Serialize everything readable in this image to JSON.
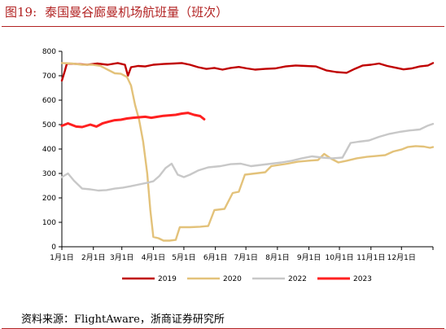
{
  "title": {
    "figure_no": "图19:",
    "text": "泰国曼谷廊曼机场航班量（班次）"
  },
  "source": "资料来源：FlightAware，浙商证券研究所",
  "chart_data": {
    "type": "line",
    "title": "泰国曼谷廊曼机场航班量（班次）",
    "xlabel": "",
    "ylabel": "",
    "ylim": [
      0,
      800
    ],
    "yticks": [
      0,
      100,
      200,
      300,
      400,
      500,
      600,
      700,
      800
    ],
    "xlim": [
      0,
      365
    ],
    "xticks": [
      {
        "label": "1月1日",
        "day": 0
      },
      {
        "label": "2月1日",
        "day": 31
      },
      {
        "label": "3月1日",
        "day": 59
      },
      {
        "label": "4月1日",
        "day": 90
      },
      {
        "label": "5月1日",
        "day": 120
      },
      {
        "label": "6月1日",
        "day": 151
      },
      {
        "label": "7月1日",
        "day": 181
      },
      {
        "label": "8月1日",
        "day": 212
      },
      {
        "label": "9月1日",
        "day": 243
      },
      {
        "label": "10月1日",
        "day": 273
      },
      {
        "label": "11月1日",
        "day": 304
      },
      {
        "label": "12月1日",
        "day": 334
      }
    ],
    "grid": false,
    "legend_position": "bottom",
    "series": [
      {
        "name": "2019",
        "color": "#c00000",
        "width": 2.4,
        "points": [
          [
            0,
            680
          ],
          [
            3,
            720
          ],
          [
            5,
            750
          ],
          [
            15,
            748
          ],
          [
            25,
            745
          ],
          [
            35,
            750
          ],
          [
            45,
            745
          ],
          [
            55,
            752
          ],
          [
            62,
            745
          ],
          [
            65,
            700
          ],
          [
            68,
            735
          ],
          [
            75,
            740
          ],
          [
            82,
            738
          ],
          [
            90,
            745
          ],
          [
            100,
            748
          ],
          [
            110,
            750
          ],
          [
            118,
            752
          ],
          [
            126,
            745
          ],
          [
            134,
            735
          ],
          [
            142,
            728
          ],
          [
            150,
            732
          ],
          [
            158,
            725
          ],
          [
            166,
            732
          ],
          [
            174,
            736
          ],
          [
            182,
            730
          ],
          [
            190,
            725
          ],
          [
            200,
            728
          ],
          [
            210,
            730
          ],
          [
            220,
            738
          ],
          [
            230,
            742
          ],
          [
            240,
            740
          ],
          [
            250,
            738
          ],
          [
            260,
            722
          ],
          [
            270,
            715
          ],
          [
            280,
            712
          ],
          [
            288,
            728
          ],
          [
            296,
            742
          ],
          [
            304,
            745
          ],
          [
            312,
            750
          ],
          [
            320,
            740
          ],
          [
            328,
            733
          ],
          [
            336,
            726
          ],
          [
            344,
            730
          ],
          [
            352,
            738
          ],
          [
            360,
            742
          ],
          [
            365,
            752
          ]
        ]
      },
      {
        "name": "2020",
        "color": "#e3c27a",
        "width": 2.4,
        "points": [
          [
            0,
            752
          ],
          [
            10,
            750
          ],
          [
            20,
            745
          ],
          [
            30,
            745
          ],
          [
            38,
            740
          ],
          [
            45,
            725
          ],
          [
            52,
            710
          ],
          [
            58,
            708
          ],
          [
            64,
            695
          ],
          [
            68,
            660
          ],
          [
            72,
            580
          ],
          [
            76,
            520
          ],
          [
            80,
            430
          ],
          [
            84,
            300
          ],
          [
            87,
            150
          ],
          [
            90,
            40
          ],
          [
            95,
            35
          ],
          [
            100,
            25
          ],
          [
            106,
            25
          ],
          [
            112,
            28
          ],
          [
            116,
            80
          ],
          [
            126,
            80
          ],
          [
            136,
            82
          ],
          [
            144,
            85
          ],
          [
            150,
            150
          ],
          [
            160,
            155
          ],
          [
            168,
            220
          ],
          [
            174,
            225
          ],
          [
            180,
            295
          ],
          [
            190,
            300
          ],
          [
            200,
            305
          ],
          [
            206,
            330
          ],
          [
            214,
            335
          ],
          [
            222,
            340
          ],
          [
            232,
            348
          ],
          [
            242,
            352
          ],
          [
            252,
            355
          ],
          [
            258,
            380
          ],
          [
            265,
            360
          ],
          [
            272,
            345
          ],
          [
            280,
            352
          ],
          [
            290,
            362
          ],
          [
            300,
            368
          ],
          [
            310,
            372
          ],
          [
            318,
            375
          ],
          [
            326,
            390
          ],
          [
            334,
            398
          ],
          [
            340,
            408
          ],
          [
            348,
            412
          ],
          [
            356,
            410
          ],
          [
            362,
            405
          ],
          [
            365,
            408
          ]
        ]
      },
      {
        "name": "2022",
        "color": "#c8c8c8",
        "width": 2.4,
        "points": [
          [
            0,
            285
          ],
          [
            6,
            300
          ],
          [
            12,
            270
          ],
          [
            20,
            238
          ],
          [
            28,
            235
          ],
          [
            36,
            230
          ],
          [
            44,
            232
          ],
          [
            52,
            238
          ],
          [
            60,
            242
          ],
          [
            68,
            248
          ],
          [
            76,
            255
          ],
          [
            84,
            262
          ],
          [
            90,
            268
          ],
          [
            96,
            290
          ],
          [
            102,
            322
          ],
          [
            108,
            340
          ],
          [
            114,
            295
          ],
          [
            120,
            285
          ],
          [
            126,
            295
          ],
          [
            134,
            312
          ],
          [
            144,
            325
          ],
          [
            156,
            330
          ],
          [
            166,
            338
          ],
          [
            176,
            340
          ],
          [
            186,
            330
          ],
          [
            196,
            335
          ],
          [
            206,
            340
          ],
          [
            216,
            345
          ],
          [
            226,
            352
          ],
          [
            236,
            362
          ],
          [
            246,
            370
          ],
          [
            256,
            365
          ],
          [
            266,
            362
          ],
          [
            276,
            365
          ],
          [
            284,
            425
          ],
          [
            292,
            430
          ],
          [
            302,
            435
          ],
          [
            312,
            450
          ],
          [
            322,
            462
          ],
          [
            332,
            470
          ],
          [
            342,
            476
          ],
          [
            352,
            480
          ],
          [
            360,
            496
          ],
          [
            365,
            503
          ]
        ]
      },
      {
        "name": "2023",
        "color": "#ff2020",
        "width": 3,
        "points": [
          [
            0,
            495
          ],
          [
            6,
            505
          ],
          [
            14,
            492
          ],
          [
            20,
            490
          ],
          [
            28,
            500
          ],
          [
            34,
            492
          ],
          [
            40,
            505
          ],
          [
            46,
            512
          ],
          [
            52,
            518
          ],
          [
            58,
            520
          ],
          [
            64,
            525
          ],
          [
            70,
            528
          ],
          [
            76,
            530
          ],
          [
            82,
            532
          ],
          [
            88,
            528
          ],
          [
            94,
            532
          ],
          [
            100,
            536
          ],
          [
            106,
            538
          ],
          [
            112,
            540
          ],
          [
            118,
            545
          ],
          [
            124,
            548
          ],
          [
            130,
            540
          ],
          [
            136,
            535
          ],
          [
            140,
            522
          ]
        ]
      }
    ]
  }
}
